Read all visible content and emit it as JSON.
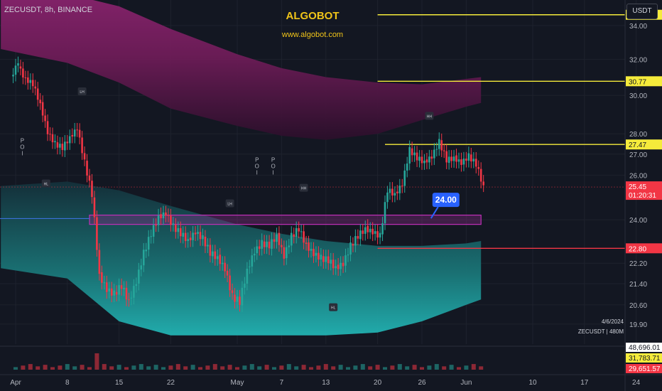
{
  "header": {
    "symbol_line": "ZECUSDT, 8h, BINANCE",
    "brand_title": "ALGOBOT",
    "brand_url": "www.algobot.com",
    "currency": "USDT"
  },
  "info": {
    "date": "4/6/2024",
    "symbol_tf": "ZECUSDT | 480M"
  },
  "colors": {
    "background": "#131722",
    "up": "#26a69a",
    "down": "#f23645",
    "level_yellow": "#f5eb3b",
    "level_red": "#f23645",
    "zone": "#c030b8",
    "cloud_upper": "#7a1e5e",
    "cloud_lower": "#1f9b9b",
    "label_callout": "#2962ff",
    "axis_text": "#b2b5be"
  },
  "chart_data": {
    "type": "candlestick",
    "title": "ZECUSDT, 8h, BINANCE",
    "y_axis": {
      "ticks": [
        34.0,
        32.0,
        30.0,
        28.0,
        27.0,
        26.0,
        24.0,
        22.2,
        21.4,
        20.6,
        19.9
      ],
      "tick_labels": [
        "34.00",
        "32.00",
        "30.00",
        "28.00",
        "27.00",
        "26.00",
        "24.00",
        "22.20",
        "21.40",
        "20.60",
        "19.90"
      ],
      "scale": "log"
    },
    "x_axis": {
      "ticks": [
        "Apr",
        "8",
        "15",
        "22",
        "May",
        "7",
        "13",
        "20",
        "26",
        "Jun",
        "10",
        "17",
        "24"
      ],
      "range": [
        "2024-04-01",
        "2024-06-24"
      ]
    },
    "price_levels": [
      {
        "label": "34.67",
        "value": 34.67,
        "color": "yellow"
      },
      {
        "label": "30.77",
        "value": 30.77,
        "color": "yellow"
      },
      {
        "label": "27.47",
        "value": 27.47,
        "color": "yellow"
      },
      {
        "label": "22.80",
        "value": 22.8,
        "color": "red"
      }
    ],
    "current_price": {
      "label": "25.45",
      "value": 25.45,
      "countdown": "01:20:31"
    },
    "callout": {
      "label": "24.00",
      "value": 24.0
    },
    "zone": {
      "low": 23.8,
      "high": 24.2,
      "start": "2024-04-11",
      "end": "2024-06-03"
    },
    "marker_labels": [
      "LH",
      "HL",
      "LH",
      "HH",
      "HL",
      "HH"
    ],
    "poi_label": "P O I",
    "candles": [
      [
        "2024-04-01",
        30.9,
        31.9
      ],
      [
        "2024-04-02",
        31.7,
        30.8
      ],
      [
        "2024-04-03",
        30.9,
        30.6
      ],
      [
        "2024-04-04",
        30.6,
        29.5
      ],
      [
        "2024-04-05",
        29.5,
        28.1
      ],
      [
        "2024-04-06",
        28.1,
        27.5
      ],
      [
        "2024-04-07",
        27.5,
        27.3
      ],
      [
        "2024-04-08",
        27.3,
        27.8
      ],
      [
        "2024-04-09",
        27.8,
        28.3
      ],
      [
        "2024-04-10",
        28.3,
        26.6
      ],
      [
        "2024-04-11",
        26.6,
        25.1
      ],
      [
        "2024-04-12",
        25.1,
        21.7
      ],
      [
        "2024-04-13",
        21.7,
        21.2
      ],
      [
        "2024-04-14",
        21.2,
        21.0
      ],
      [
        "2024-04-15",
        21.0,
        21.3
      ],
      [
        "2024-04-16",
        21.3,
        20.7
      ],
      [
        "2024-04-17",
        20.7,
        21.5
      ],
      [
        "2024-04-18",
        21.5,
        22.6
      ],
      [
        "2024-04-19",
        22.6,
        23.4
      ],
      [
        "2024-04-20",
        23.4,
        24.1
      ],
      [
        "2024-04-21",
        24.1,
        24.3
      ],
      [
        "2024-04-22",
        24.3,
        23.7
      ],
      [
        "2024-04-23",
        23.7,
        23.4
      ],
      [
        "2024-04-24",
        23.4,
        23.1
      ],
      [
        "2024-04-25",
        23.1,
        23.5
      ],
      [
        "2024-04-26",
        23.5,
        23.2
      ],
      [
        "2024-04-27",
        23.2,
        22.6
      ],
      [
        "2024-04-28",
        22.6,
        22.4
      ],
      [
        "2024-04-29",
        22.4,
        22.0
      ],
      [
        "2024-04-30",
        22.0,
        20.9
      ],
      [
        "2024-05-01",
        20.9,
        20.7
      ],
      [
        "2024-05-02",
        20.7,
        21.9
      ],
      [
        "2024-05-03",
        21.9,
        22.7
      ],
      [
        "2024-05-04",
        22.7,
        23.0
      ],
      [
        "2024-05-05",
        23.0,
        22.9
      ],
      [
        "2024-05-06",
        22.9,
        23.3
      ],
      [
        "2024-05-07",
        23.3,
        22.5
      ],
      [
        "2024-05-08",
        22.5,
        23.3
      ],
      [
        "2024-05-09",
        23.3,
        23.6
      ],
      [
        "2024-05-10",
        23.6,
        22.9
      ],
      [
        "2024-05-11",
        22.9,
        22.6
      ],
      [
        "2024-05-12",
        22.6,
        22.4
      ],
      [
        "2024-05-13",
        22.4,
        22.3
      ],
      [
        "2024-05-14",
        22.3,
        22.0
      ],
      [
        "2024-05-15",
        22.0,
        22.2
      ],
      [
        "2024-05-16",
        22.2,
        22.9
      ],
      [
        "2024-05-17",
        22.9,
        23.3
      ],
      [
        "2024-05-18",
        23.3,
        23.6
      ],
      [
        "2024-05-19",
        23.6,
        23.5
      ],
      [
        "2024-05-20",
        23.5,
        23.3
      ],
      [
        "2024-05-21",
        23.3,
        25.3
      ],
      [
        "2024-05-22",
        25.3,
        25.1
      ],
      [
        "2024-05-23",
        25.1,
        25.6
      ],
      [
        "2024-05-24",
        25.6,
        27.2
      ],
      [
        "2024-05-25",
        27.2,
        26.8
      ],
      [
        "2024-05-26",
        26.8,
        26.6
      ],
      [
        "2024-05-27",
        26.6,
        26.9
      ],
      [
        "2024-05-28",
        26.9,
        27.6
      ],
      [
        "2024-05-29",
        27.6,
        26.7
      ],
      [
        "2024-05-30",
        26.7,
        26.8
      ],
      [
        "2024-05-31",
        26.8,
        26.6
      ],
      [
        "2024-06-01",
        26.6,
        26.9
      ],
      [
        "2024-06-02",
        26.9,
        26.5
      ],
      [
        "2024-06-03",
        26.5,
        25.45
      ]
    ],
    "volume": {
      "labels": [
        "48,696.01",
        "31,783.71",
        "29,651.57"
      ],
      "values": [
        48696.01,
        31783.71,
        29651.57
      ]
    }
  }
}
